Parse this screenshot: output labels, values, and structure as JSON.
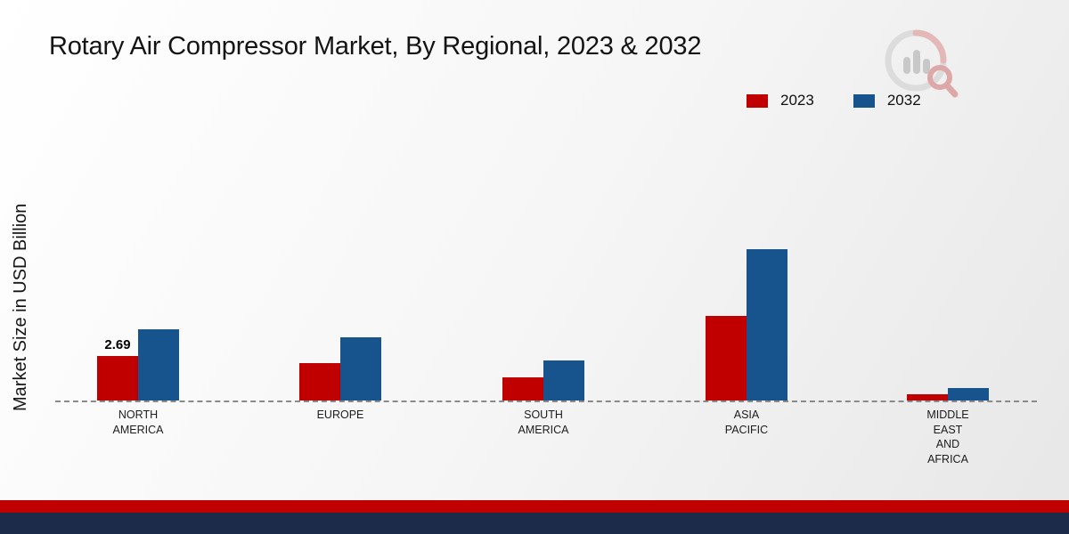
{
  "page": {
    "title": "Rotary Air Compressor Market, By Regional, 2023 & 2032",
    "ylabel": "Market Size in USD Billion"
  },
  "legend": {
    "items": [
      {
        "label": "2023",
        "color": "#c00000"
      },
      {
        "label": "2032",
        "color": "#17538d"
      }
    ]
  },
  "chart_data": {
    "type": "bar",
    "title": "Rotary Air Compressor Market, By Regional, 2023 & 2032",
    "xlabel": "",
    "ylabel": "Market Size in USD Billion",
    "categories": [
      "NORTH AMERICA",
      "EUROPE",
      "SOUTH AMERICA",
      "ASIA PACIFIC",
      "MIDDLE EAST AND AFRICA"
    ],
    "series": [
      {
        "name": "2023",
        "color": "#c00000",
        "values": [
          2.69,
          2.26,
          1.4,
          5.1,
          0.38
        ]
      },
      {
        "name": "2032",
        "color": "#17538d",
        "values": [
          4.3,
          3.8,
          2.42,
          9.15,
          0.75
        ]
      }
    ],
    "annotations": [
      {
        "series": "2023",
        "category": "NORTH AMERICA",
        "text": "2.69"
      }
    ],
    "ylim": [
      0,
      10
    ],
    "grid": false,
    "legend_position": "top-right",
    "baseline_style": "dashed"
  },
  "footer": {
    "stripe_colors": [
      "#c00000",
      "#1c2b4a"
    ]
  },
  "icons": {
    "watermark": "market-research-future-logo"
  }
}
